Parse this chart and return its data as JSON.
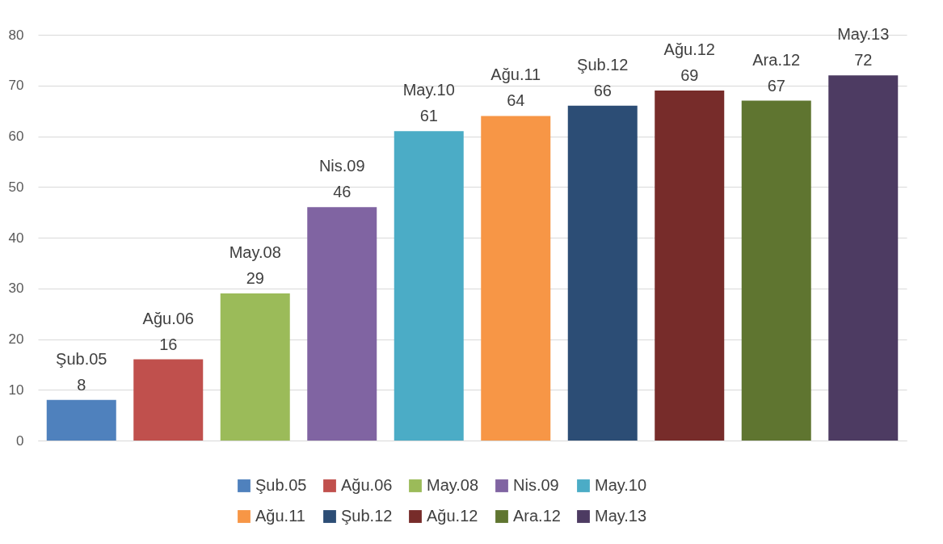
{
  "chart_data": {
    "type": "bar",
    "categories": [
      null
    ],
    "series": [
      {
        "name": "Şub.05",
        "color": "#4f81bd",
        "values": [
          8
        ]
      },
      {
        "name": "Ağu.06",
        "color": "#c0504d",
        "values": [
          16
        ]
      },
      {
        "name": "May.08",
        "color": "#9bbb59",
        "values": [
          29
        ]
      },
      {
        "name": "Nis.09",
        "color": "#8064a2",
        "values": [
          46
        ]
      },
      {
        "name": "May.10",
        "color": "#4bacc6",
        "values": [
          61
        ]
      },
      {
        "name": "Ağu.11",
        "color": "#f79646",
        "values": [
          64
        ]
      },
      {
        "name": "Şub.12",
        "color": "#2c4d75",
        "values": [
          66
        ]
      },
      {
        "name": "Ağu.12",
        "color": "#772c2a",
        "values": [
          69
        ]
      },
      {
        "name": "Ara.12",
        "color": "#5f7530",
        "values": [
          67
        ]
      },
      {
        "name": "May.13",
        "color": "#4d3b62",
        "values": [
          72
        ]
      }
    ],
    "ylim": [
      0,
      80
    ],
    "yticks": [
      0,
      10,
      20,
      30,
      40,
      50,
      60,
      70,
      80
    ],
    "grid": "y",
    "legend": "bottom",
    "data_labels": true,
    "tick_labels": "y"
  }
}
